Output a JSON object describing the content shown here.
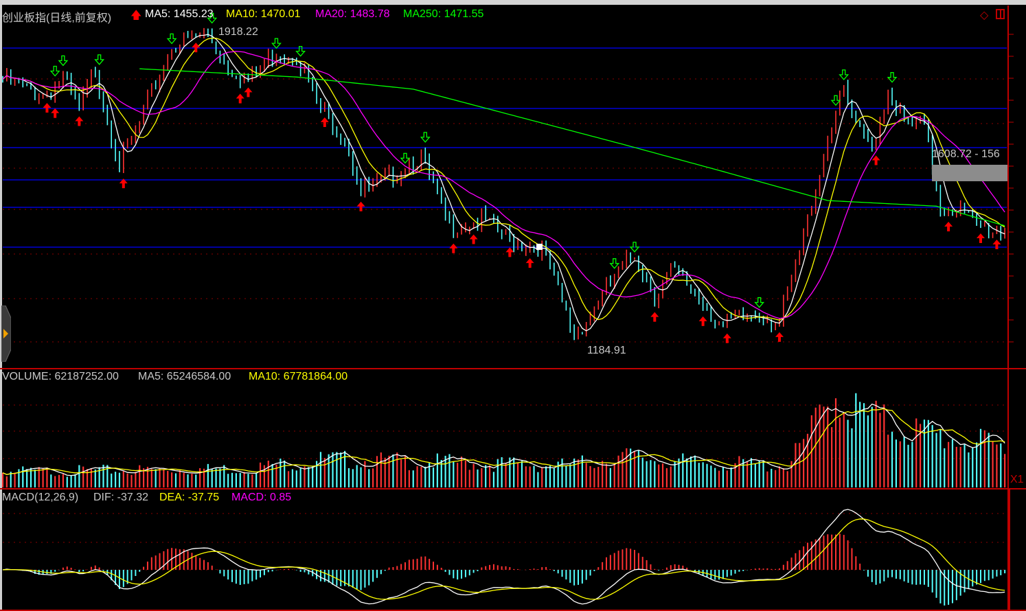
{
  "header": {
    "title": "创业板指(日线,前复权)",
    "ma5": "MA5: 1455.23",
    "ma10": "MA10: 1470.01",
    "ma20": "MA20: 1483.78",
    "ma250": "MA250: 1471.55"
  },
  "volume_header": {
    "volume": "VOLUME: 62187252.00",
    "ma5": "MA5: 65246584.00",
    "ma10": "MA10: 67781864.00"
  },
  "macd_header": {
    "name": "MACD(12,26,9)",
    "dif": "DIF: -37.32",
    "dea": "DEA: -37.75",
    "macd": "MACD: 0.85"
  },
  "annotations": {
    "high": "1918.22",
    "low": "1184.91",
    "range_tip": "1608.72 - 156",
    "zoom_label": "X1"
  },
  "colors": {
    "background": "#000000",
    "up": "#ff3232",
    "down": "#54ffff",
    "ma5": "#ffffff",
    "ma10": "#ffff00",
    "ma20": "#ff00ff",
    "ma250": "#00ff00",
    "axis": "#c00000",
    "level_line": "#0000ff",
    "buy_signal": "#ff0000",
    "sell_signal": "#00ff00"
  },
  "chart_data": {
    "type": "candlestick",
    "bars": 250,
    "price_range": [
      1184.91,
      1918.22
    ],
    "close_keypoints": [
      [
        0,
        1810
      ],
      [
        10,
        1771
      ],
      [
        15,
        1810
      ],
      [
        19,
        1739
      ],
      [
        23,
        1834
      ],
      [
        29,
        1612
      ],
      [
        34,
        1708
      ],
      [
        42,
        1890
      ],
      [
        51,
        1913
      ],
      [
        56,
        1842
      ],
      [
        61,
        1803
      ],
      [
        68,
        1874
      ],
      [
        73,
        1866
      ],
      [
        78,
        1755
      ],
      [
        85,
        1676
      ],
      [
        89,
        1549
      ],
      [
        96,
        1581
      ],
      [
        101,
        1620
      ],
      [
        104,
        1628
      ],
      [
        111,
        1470
      ],
      [
        119,
        1486
      ],
      [
        126,
        1438
      ],
      [
        134,
        1422
      ],
      [
        142,
        1217
      ],
      [
        147,
        1280
      ],
      [
        150,
        1327
      ],
      [
        157,
        1407
      ],
      [
        162,
        1312
      ],
      [
        166,
        1367
      ],
      [
        171,
        1328
      ],
      [
        179,
        1240
      ],
      [
        188,
        1272
      ],
      [
        193,
        1248
      ],
      [
        198,
        1407
      ],
      [
        205,
        1676
      ],
      [
        209,
        1787
      ],
      [
        212,
        1692
      ],
      [
        216,
        1652
      ],
      [
        220,
        1787
      ],
      [
        224,
        1708
      ],
      [
        229,
        1700
      ],
      [
        233,
        1517
      ],
      [
        237,
        1517
      ],
      [
        242,
        1470
      ],
      [
        249,
        1455
      ]
    ],
    "ma250_keypoints": [
      [
        34,
        1834
      ],
      [
        73,
        1815
      ],
      [
        102,
        1787
      ],
      [
        154,
        1660
      ],
      [
        179,
        1597
      ],
      [
        205,
        1530
      ],
      [
        232,
        1517
      ],
      [
        249,
        1472
      ]
    ],
    "volume_keypoints_millions": [
      [
        0,
        25
      ],
      [
        60,
        30
      ],
      [
        80,
        45
      ],
      [
        110,
        40
      ],
      [
        140,
        35
      ],
      [
        155,
        50
      ],
      [
        170,
        40
      ],
      [
        195,
        35
      ],
      [
        200,
        80
      ],
      [
        207,
        150
      ],
      [
        212,
        120
      ],
      [
        220,
        100
      ],
      [
        235,
        80
      ],
      [
        249,
        62
      ]
    ],
    "price_levels": [
      1881.8,
      1742.4,
      1652.1,
      1577.7,
      1514.3,
      1422.5
    ],
    "buy_signals": [
      11,
      13,
      19,
      30,
      48,
      59,
      61,
      80,
      89,
      112,
      117,
      126,
      131,
      162,
      174,
      180,
      193,
      217,
      235,
      243,
      247
    ],
    "sell_signals": [
      13,
      15,
      24,
      42,
      52,
      68,
      74,
      100,
      105,
      152,
      157,
      188,
      207,
      209,
      221
    ],
    "macd_params": [
      12,
      26,
      9
    ]
  }
}
